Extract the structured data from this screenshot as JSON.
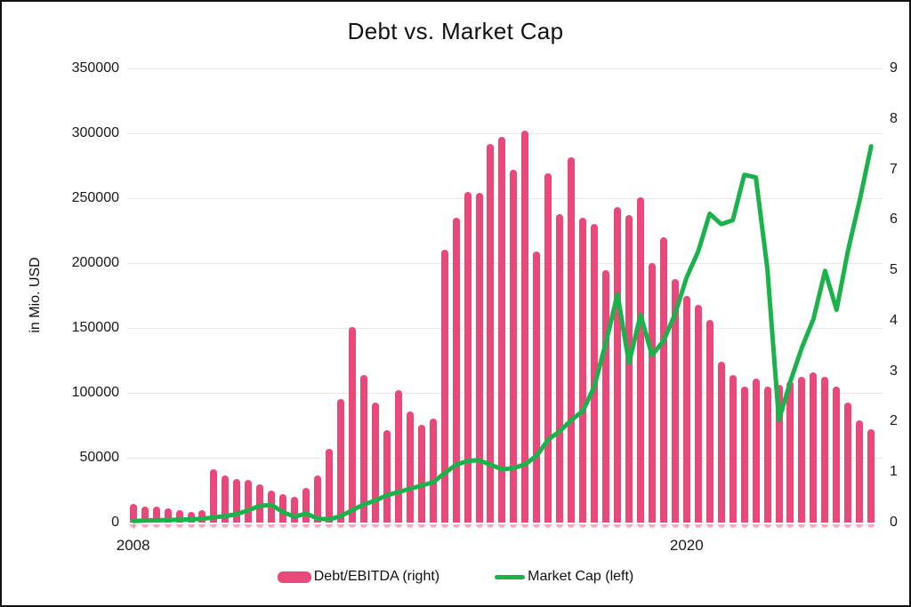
{
  "title": "Debt vs. Market Cap",
  "left_axis": {
    "title": "in Mio. USD"
  },
  "legend": {
    "items": [
      {
        "label": "Debt/EBITDA (right)",
        "type": "bar"
      },
      {
        "label": "Market Cap (left)",
        "type": "line"
      }
    ]
  },
  "colors": {
    "bar": "#e9497a",
    "line": "#1ab24b",
    "grid": "#e8e8e8",
    "text": "#1a1a1a"
  },
  "chart_data": {
    "type": "combo-bar-line",
    "x": [
      "2008Q1",
      "2008Q2",
      "2008Q3",
      "2008Q4",
      "2009Q1",
      "2009Q2",
      "2009Q3",
      "2009Q4",
      "2010Q1",
      "2010Q2",
      "2010Q3",
      "2010Q4",
      "2011Q1",
      "2011Q2",
      "2011Q3",
      "2011Q4",
      "2012Q1",
      "2012Q2",
      "2012Q3",
      "2012Q4",
      "2013Q1",
      "2013Q2",
      "2013Q3",
      "2013Q4",
      "2014Q1",
      "2014Q2",
      "2014Q3",
      "2014Q4",
      "2015Q1",
      "2015Q2",
      "2015Q3",
      "2015Q4",
      "2016Q1",
      "2016Q2",
      "2016Q3",
      "2016Q4",
      "2017Q1",
      "2017Q2",
      "2017Q3",
      "2017Q4",
      "2018Q1",
      "2018Q2",
      "2018Q3",
      "2018Q4",
      "2019Q1",
      "2019Q2",
      "2019Q3",
      "2019Q4",
      "2020Q1",
      "2020Q2",
      "2020Q3",
      "2020Q4",
      "2021Q1",
      "2021Q2",
      "2021Q3",
      "2021Q4",
      "2022Q1",
      "2022Q2",
      "2022Q3",
      "2022Q4",
      "2023Q1",
      "2023Q2",
      "2023Q3",
      "2023Q4",
      "2024Q1"
    ],
    "series": [
      {
        "name": "Debt/EBITDA (right)",
        "type": "bar",
        "axis": "right",
        "values": [
          0.37,
          0.31,
          0.31,
          0.28,
          0.24,
          0.22,
          0.24,
          1.05,
          0.93,
          0.86,
          0.85,
          0.75,
          0.64,
          0.57,
          0.51,
          0.68,
          0.94,
          1.47,
          2.44,
          3.87,
          2.93,
          2.37,
          1.83,
          2.62,
          2.21,
          1.93,
          2.06,
          5.4,
          6.04,
          6.56,
          6.53,
          7.51,
          7.64,
          6.99,
          7.77,
          5.37,
          6.92,
          6.12,
          7.23,
          6.04,
          5.91,
          5.01,
          6.25,
          6.09,
          6.45,
          5.14,
          5.66,
          4.83,
          4.5,
          4.32,
          4.01,
          3.19,
          2.93,
          2.7,
          2.85,
          2.7,
          2.73,
          2.8,
          2.88,
          2.98,
          2.88,
          2.7,
          2.37,
          2.03,
          1.85
        ]
      },
      {
        "name": "Market Cap (left)",
        "type": "line",
        "axis": "left",
        "values": [
          1200,
          1500,
          1800,
          2000,
          2200,
          2500,
          3000,
          4000,
          5000,
          6500,
          9500,
          13000,
          13500,
          8000,
          4500,
          7000,
          3000,
          2500,
          5000,
          9500,
          14000,
          17000,
          21000,
          23500,
          26000,
          28500,
          31000,
          38000,
          44500,
          47500,
          48000,
          44500,
          41000,
          42000,
          45000,
          51500,
          64000,
          70500,
          79000,
          86000,
          105000,
          139000,
          176000,
          123000,
          160000,
          129000,
          140000,
          161000,
          189000,
          209000,
          238000,
          230000,
          233000,
          268000,
          266000,
          196000,
          79000,
          109000,
          135000,
          157000,
          194000,
          164000,
          210000,
          248000,
          290000
        ]
      }
    ],
    "axes": {
      "left": {
        "min": 0,
        "max": 350000,
        "ticks": [
          "0",
          "50000",
          "100000",
          "150000",
          "200000",
          "250000",
          "300000",
          "350000"
        ]
      },
      "right": {
        "min": 0,
        "max": 9,
        "ticks": [
          "0",
          "1",
          "2",
          "3",
          "4",
          "5",
          "6",
          "7",
          "8",
          "9"
        ]
      }
    },
    "x_ticks": [
      {
        "label": "2008",
        "index": 0
      },
      {
        "label": "2020",
        "index": 48
      }
    ],
    "grid": "horizontal",
    "legend_position": "bottom"
  }
}
